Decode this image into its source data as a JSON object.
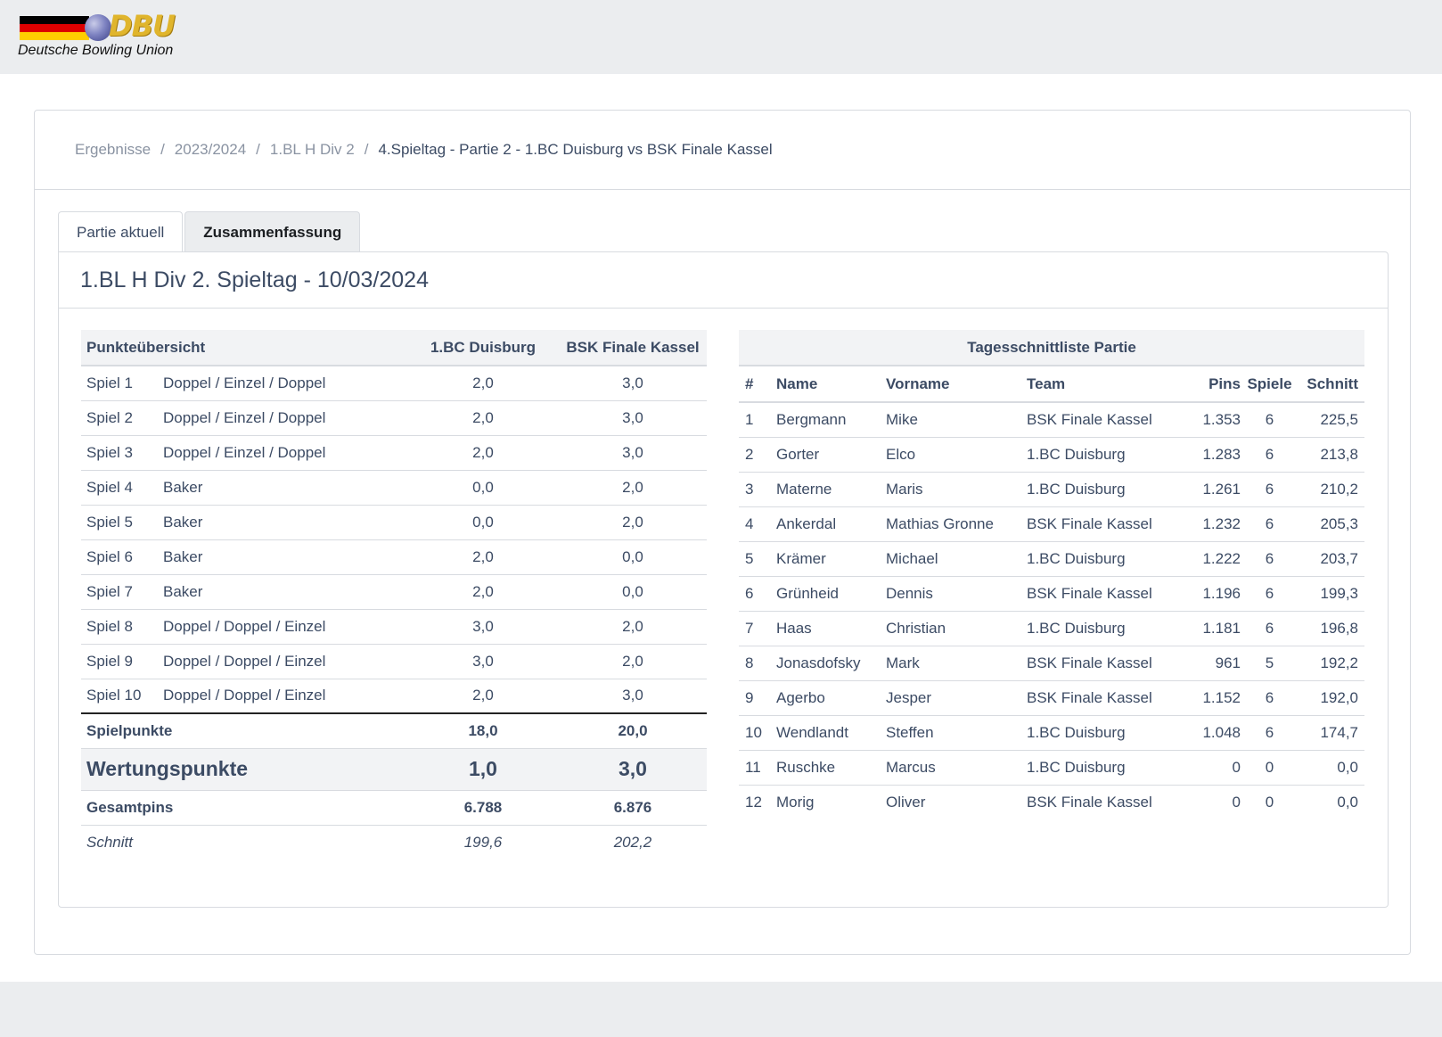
{
  "brand": {
    "logo_text": "DBU",
    "subtitle": "Deutsche Bowling Union"
  },
  "breadcrumb": [
    "Ergebnisse",
    "2023/2024",
    "1.BL H Div 2",
    "4.Spieltag - Partie 2 - 1.BC Duisburg vs BSK Finale Kassel"
  ],
  "tabs": [
    {
      "label": "Partie aktuell"
    },
    {
      "label": "Zusammenfassung"
    }
  ],
  "section_title": "1.BL H Div 2. Spieltag - 10/03/2024",
  "points": {
    "headers": [
      "Punkteübersicht",
      "1.BC Duisburg",
      "BSK Finale Kassel"
    ],
    "games": [
      [
        "Spiel 1",
        "Doppel / Einzel / Doppel",
        "2,0",
        "3,0"
      ],
      [
        "Spiel 2",
        "Doppel / Einzel / Doppel",
        "2,0",
        "3,0"
      ],
      [
        "Spiel 3",
        "Doppel / Einzel / Doppel",
        "2,0",
        "3,0"
      ],
      [
        "Spiel 4",
        "Baker",
        "0,0",
        "2,0"
      ],
      [
        "Spiel 5",
        "Baker",
        "0,0",
        "2,0"
      ],
      [
        "Spiel 6",
        "Baker",
        "2,0",
        "0,0"
      ],
      [
        "Spiel 7",
        "Baker",
        "2,0",
        "0,0"
      ],
      [
        "Spiel 8",
        "Doppel / Doppel / Einzel",
        "3,0",
        "2,0"
      ],
      [
        "Spiel 9",
        "Doppel / Doppel / Einzel",
        "3,0",
        "2,0"
      ],
      [
        "Spiel 10",
        "Doppel / Doppel / Einzel",
        "2,0",
        "3,0"
      ]
    ],
    "spielpunkte": [
      "Spielpunkte",
      "18,0",
      "20,0"
    ],
    "wertungspunkte": [
      "Wertungspunkte",
      "1,0",
      "3,0"
    ],
    "gesamtpins": [
      "Gesamtpins",
      "6.788",
      "6.876"
    ],
    "schnitt": [
      "Schnitt",
      "199,6",
      "202,2"
    ]
  },
  "averages": {
    "caption": "Tagesschnittliste Partie",
    "headers": [
      "#",
      "Name",
      "Vorname",
      "Team",
      "Pins",
      "Spiele",
      "Schnitt"
    ],
    "rows": [
      [
        "1",
        "Bergmann",
        "Mike",
        "BSK Finale Kassel",
        "1.353",
        "6",
        "225,5"
      ],
      [
        "2",
        "Gorter",
        "Elco",
        "1.BC Duisburg",
        "1.283",
        "6",
        "213,8"
      ],
      [
        "3",
        "Materne",
        "Maris",
        "1.BC Duisburg",
        "1.261",
        "6",
        "210,2"
      ],
      [
        "4",
        "Ankerdal",
        "Mathias Gronne",
        "BSK Finale Kassel",
        "1.232",
        "6",
        "205,3"
      ],
      [
        "5",
        "Krämer",
        "Michael",
        "1.BC Duisburg",
        "1.222",
        "6",
        "203,7"
      ],
      [
        "6",
        "Grünheid",
        "Dennis",
        "BSK Finale Kassel",
        "1.196",
        "6",
        "199,3"
      ],
      [
        "7",
        "Haas",
        "Christian",
        "1.BC Duisburg",
        "1.181",
        "6",
        "196,8"
      ],
      [
        "8",
        "Jonasdofsky",
        "Mark",
        "BSK Finale Kassel",
        "961",
        "5",
        "192,2"
      ],
      [
        "9",
        "Agerbo",
        "Jesper",
        "BSK Finale Kassel",
        "1.152",
        "6",
        "192,0"
      ],
      [
        "10",
        "Wendlandt",
        "Steffen",
        "1.BC Duisburg",
        "1.048",
        "6",
        "174,7"
      ],
      [
        "11",
        "Ruschke",
        "Marcus",
        "1.BC Duisburg",
        "0",
        "0",
        "0,0"
      ],
      [
        "12",
        "Morig",
        "Oliver",
        "BSK Finale Kassel",
        "0",
        "0",
        "0,0"
      ]
    ]
  }
}
